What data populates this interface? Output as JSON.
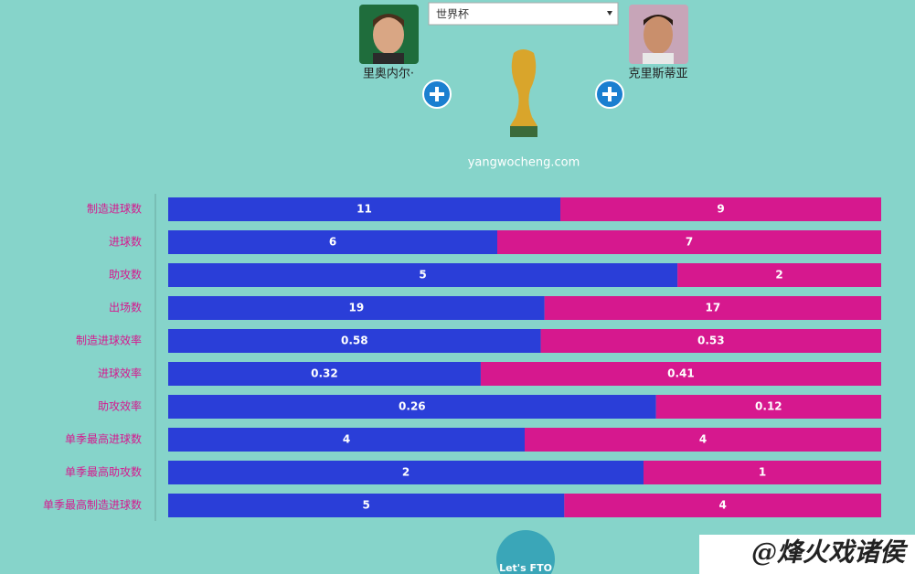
{
  "ui": {
    "dropdown": "世界杯",
    "site": "yangwocheng.com",
    "watermark": "@烽火戏诸侯",
    "logo": "Let's FTO"
  },
  "chart_data": {
    "type": "bar",
    "stacked": "percent",
    "orientation": "horizontal",
    "categories": [
      "制造进球数",
      "进球数",
      "助攻数",
      "出场数",
      "制造进球效率",
      "进球效率",
      "助攻效率",
      "单季最高进球数",
      "单季最高助攻数",
      "单季最高制造进球数"
    ],
    "series": [
      {
        "name": "里奥内尔·",
        "color": "#2a3ed8",
        "values": [
          11,
          6,
          5,
          19,
          0.58,
          0.32,
          0.26,
          4,
          2,
          5
        ]
      },
      {
        "name": "克里斯蒂亚",
        "color": "#d6188e",
        "values": [
          9,
          7,
          2,
          17,
          0.53,
          0.41,
          0.12,
          4,
          1,
          4
        ]
      }
    ]
  }
}
